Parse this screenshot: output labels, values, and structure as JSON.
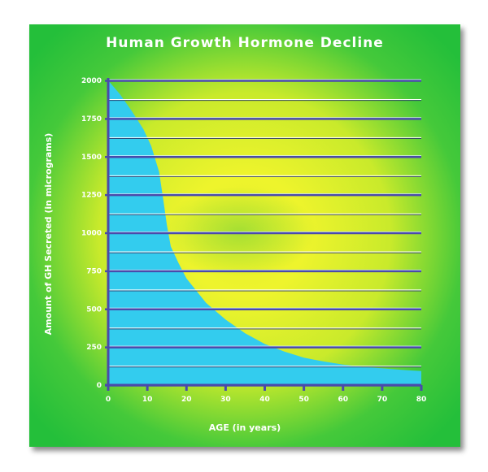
{
  "chart_data": {
    "type": "area",
    "title": "Human Growth Hormone Decline",
    "xlabel": "AGE (in years)",
    "ylabel": "Amount of GH Secreted (in micrograms)",
    "xlim": [
      0,
      80
    ],
    "ylim": [
      0,
      2000
    ],
    "x_ticks": [
      "0",
      "10",
      "20",
      "30",
      "40",
      "50",
      "60",
      "70",
      "80"
    ],
    "y_ticks": [
      "0",
      "250",
      "500",
      "750",
      "1000",
      "1250",
      "1500",
      "1750",
      "2000"
    ],
    "grid": true,
    "legend": "none",
    "colors": {
      "area_fill": "#33ccee",
      "axis": "#4a4aaa",
      "background_outer": "#27c43a",
      "background_inner": "#f0f22a",
      "text": "#ffffff"
    },
    "series": [
      {
        "x": [
          0,
          3,
          6,
          9,
          11,
          13,
          14,
          15,
          16,
          18,
          20,
          25,
          30,
          35,
          40,
          45,
          50,
          55,
          60,
          65,
          70,
          75,
          80
        ],
        "values": [
          2000,
          1910,
          1800,
          1680,
          1570,
          1400,
          1230,
          1050,
          910,
          800,
          700,
          540,
          430,
          340,
          270,
          220,
          180,
          155,
          135,
          120,
          110,
          100,
          92
        ]
      }
    ]
  }
}
